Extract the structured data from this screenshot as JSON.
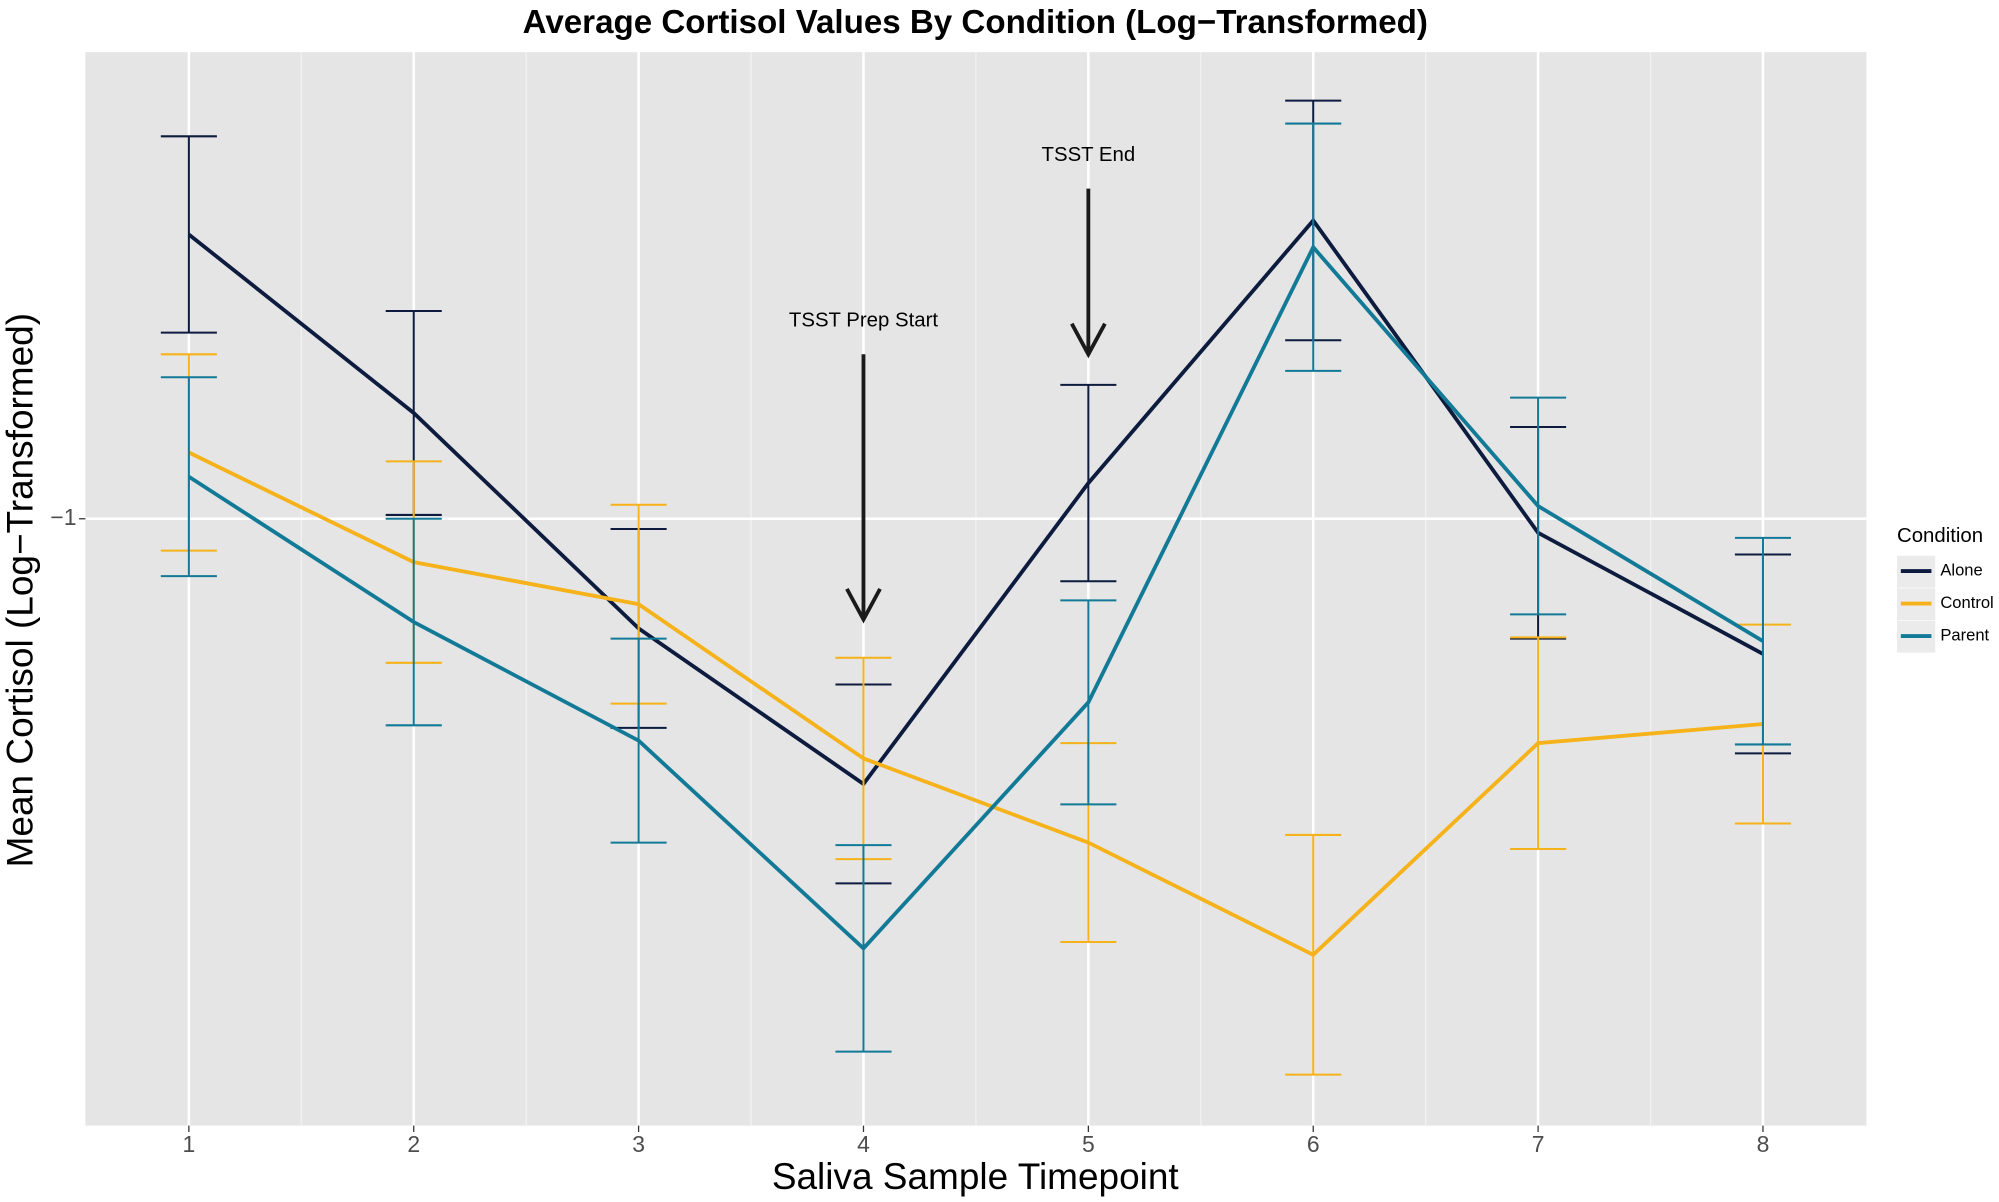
{
  "chart_data": {
    "type": "line",
    "title": "Average Cortisol Values By Condition (Log−Transformed)",
    "x_label": "Saliva Sample Timepoint",
    "y_label": "Mean Cortisol (Log−Transformed)",
    "legend_title": "Condition",
    "x": [
      1,
      2,
      3,
      4,
      5,
      6,
      7,
      8
    ],
    "xlim": [
      0.54,
      8.46
    ],
    "xticks": [
      1,
      2,
      3,
      4,
      5,
      6,
      7,
      8
    ],
    "ylim": [
      -1.476,
      -0.634
    ],
    "yticks": [
      {
        "value": -1,
        "label": "−1"
      }
    ],
    "grid": true,
    "series": [
      {
        "name": "Alone",
        "color": "#0d1b3e",
        "values": [
          -0.777,
          -0.917,
          -1.086,
          -1.208,
          -0.972,
          -0.766,
          -1.011,
          -1.106
        ],
        "errors": [
          0.077,
          0.08,
          0.078,
          0.078,
          0.077,
          0.094,
          0.083,
          0.078
        ]
      },
      {
        "name": "Control",
        "color": "#f5b21a",
        "values": [
          -0.948,
          -1.034,
          -1.067,
          -1.188,
          -1.254,
          -1.342,
          -1.176,
          -1.161
        ],
        "errors": [
          0.077,
          0.079,
          0.078,
          0.079,
          0.078,
          0.094,
          0.083,
          0.078
        ]
      },
      {
        "name": "Parent",
        "color": "#127a96",
        "values": [
          -0.967,
          -1.081,
          -1.174,
          -1.337,
          -1.144,
          -0.787,
          -0.99,
          -1.096
        ],
        "errors": [
          0.078,
          0.081,
          0.08,
          0.081,
          0.08,
          0.097,
          0.085,
          0.081
        ]
      }
    ],
    "annotations": [
      {
        "text": "TSST Prep Start",
        "x": 4
      },
      {
        "text": "TSST End",
        "x": 5
      }
    ]
  }
}
